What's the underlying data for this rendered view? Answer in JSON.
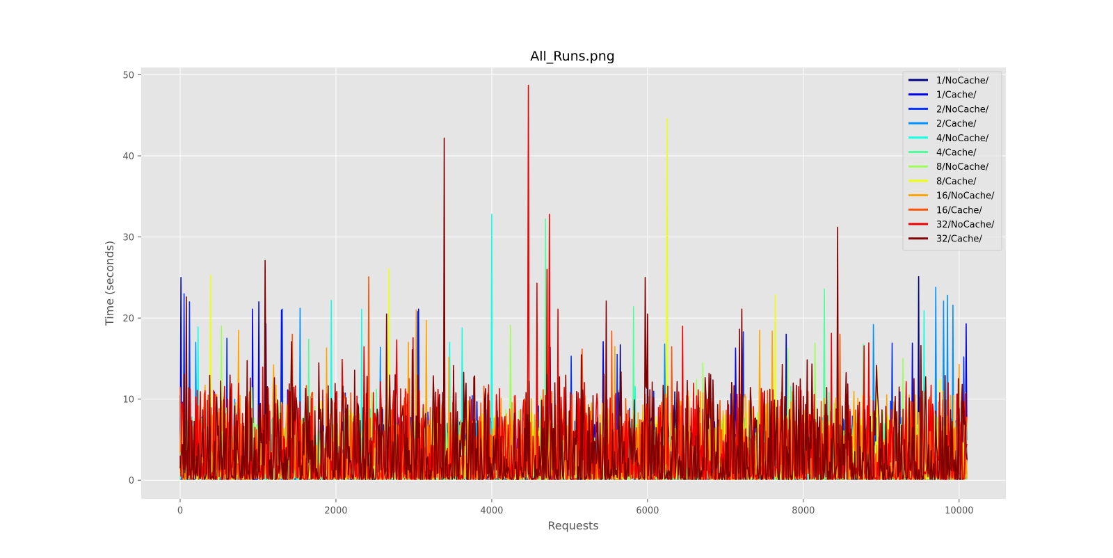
{
  "chart_data": {
    "type": "line",
    "title": "All_Runs.png",
    "xlabel": "Requests",
    "ylabel": "Time (seconds)",
    "xlim": [
      -500,
      10600
    ],
    "ylim": [
      -2.3,
      50.9
    ],
    "xticks": [
      0,
      2000,
      4000,
      6000,
      8000,
      10000
    ],
    "yticks": [
      0,
      10,
      20,
      30,
      40,
      50
    ],
    "grid": true,
    "legend_position": "top-right",
    "x_max_requests": 10100,
    "series": [
      {
        "name": "1/NoCache/",
        "color": "#00007f",
        "peaks": [
          [
            0,
            10.5
          ],
          [
            1100,
            19.3
          ],
          [
            4750,
            16.4
          ],
          [
            5650,
            16.7
          ],
          [
            6000,
            16.5
          ],
          [
            6350,
            10.9
          ],
          [
            9480,
            25.1
          ]
        ]
      },
      {
        "name": "1/Cache/",
        "color": "#0000ec",
        "peaks": [
          [
            10,
            25.0
          ],
          [
            930,
            21.1
          ],
          [
            1010,
            22.0
          ],
          [
            1300,
            21.0
          ],
          [
            3060,
            21.1
          ],
          [
            5430,
            17.1
          ],
          [
            7130,
            16.3
          ],
          [
            7780,
            18.0
          ],
          [
            9400,
            16.9
          ],
          [
            10090,
            19.3
          ]
        ]
      },
      {
        "name": "2/NoCache/",
        "color": "#0030ff",
        "peaks": [
          [
            50,
            23.0
          ],
          [
            120,
            22.0
          ],
          [
            600,
            17.5
          ],
          [
            1310,
            21.1
          ],
          [
            3050,
            20.8
          ],
          [
            5020,
            15.3
          ],
          [
            5610,
            15.5
          ],
          [
            7230,
            18.3
          ],
          [
            9140,
            16.9
          ],
          [
            10060,
            15.2
          ]
        ]
      },
      {
        "name": "2/Cache/",
        "color": "#0090ff",
        "peaks": [
          [
            200,
            17.0
          ],
          [
            1540,
            21.2
          ],
          [
            2570,
            16.4
          ],
          [
            6220,
            16.8
          ],
          [
            8900,
            19.2
          ],
          [
            9700,
            23.8
          ],
          [
            9800,
            22.1
          ],
          [
            9850,
            22.8
          ],
          [
            9920,
            21.6
          ]
        ]
      },
      {
        "name": "4/NoCache/",
        "color": "#13ffe3",
        "peaks": [
          [
            230,
            18.9
          ],
          [
            1940,
            22.2
          ],
          [
            2330,
            21.1
          ],
          [
            3460,
            17.0
          ],
          [
            3620,
            18.8
          ],
          [
            4000,
            32.8
          ],
          [
            5160,
            8.6
          ],
          [
            9550,
            20.9
          ]
        ]
      },
      {
        "name": "4/Cache/",
        "color": "#52ff9d",
        "peaks": [
          [
            1650,
            17.4
          ],
          [
            4690,
            32.2
          ],
          [
            5820,
            21.4
          ],
          [
            8270,
            23.6
          ],
          [
            8770,
            16.8
          ]
        ]
      },
      {
        "name": "8/NoCache/",
        "color": "#9dff5a",
        "peaks": [
          [
            530,
            19.0
          ],
          [
            4240,
            19.1
          ],
          [
            6710,
            14.5
          ],
          [
            7800,
            16.3
          ],
          [
            8150,
            16.9
          ],
          [
            9280,
            15.0
          ]
        ]
      },
      {
        "name": "8/Cache/",
        "color": "#ecff13",
        "peaks": [
          [
            390,
            25.3
          ],
          [
            2680,
            26.1
          ],
          [
            6250,
            44.6
          ],
          [
            7640,
            22.9
          ],
          [
            8950,
            13.9
          ]
        ]
      },
      {
        "name": "16/NoCache/",
        "color": "#ffa500",
        "peaks": [
          [
            750,
            18.5
          ],
          [
            1880,
            16.3
          ],
          [
            2930,
            17.0
          ],
          [
            3030,
            21.0
          ],
          [
            3160,
            19.7
          ],
          [
            5580,
            16.5
          ],
          [
            7440,
            18.5
          ],
          [
            7600,
            18.4
          ],
          [
            10000,
            14.3
          ]
        ]
      },
      {
        "name": "16/Cache/",
        "color": "#ff5100",
        "peaks": [
          [
            0,
            11.5
          ],
          [
            1440,
            18.0
          ],
          [
            2420,
            25.1
          ],
          [
            5540,
            18.4
          ],
          [
            8470,
            18.0
          ]
        ]
      },
      {
        "name": "32/NoCache/",
        "color": "#ec0000",
        "peaks": [
          [
            2780,
            17.3
          ],
          [
            4470,
            48.7
          ],
          [
            4580,
            24.3
          ],
          [
            4710,
            26.0
          ],
          [
            4740,
            32.8
          ],
          [
            4850,
            21.1
          ],
          [
            6450,
            19.0
          ],
          [
            7200,
            10.6
          ]
        ]
      },
      {
        "name": "32/Cache/",
        "color": "#7f0000",
        "peaks": [
          [
            80,
            22.6
          ],
          [
            1090,
            27.1
          ],
          [
            2650,
            20.5
          ],
          [
            3390,
            42.2
          ],
          [
            5470,
            22.1
          ],
          [
            5970,
            25.0
          ],
          [
            6000,
            20.5
          ],
          [
            7210,
            21.1
          ],
          [
            8440,
            31.2
          ],
          [
            9510,
            16.6
          ]
        ]
      }
    ]
  }
}
